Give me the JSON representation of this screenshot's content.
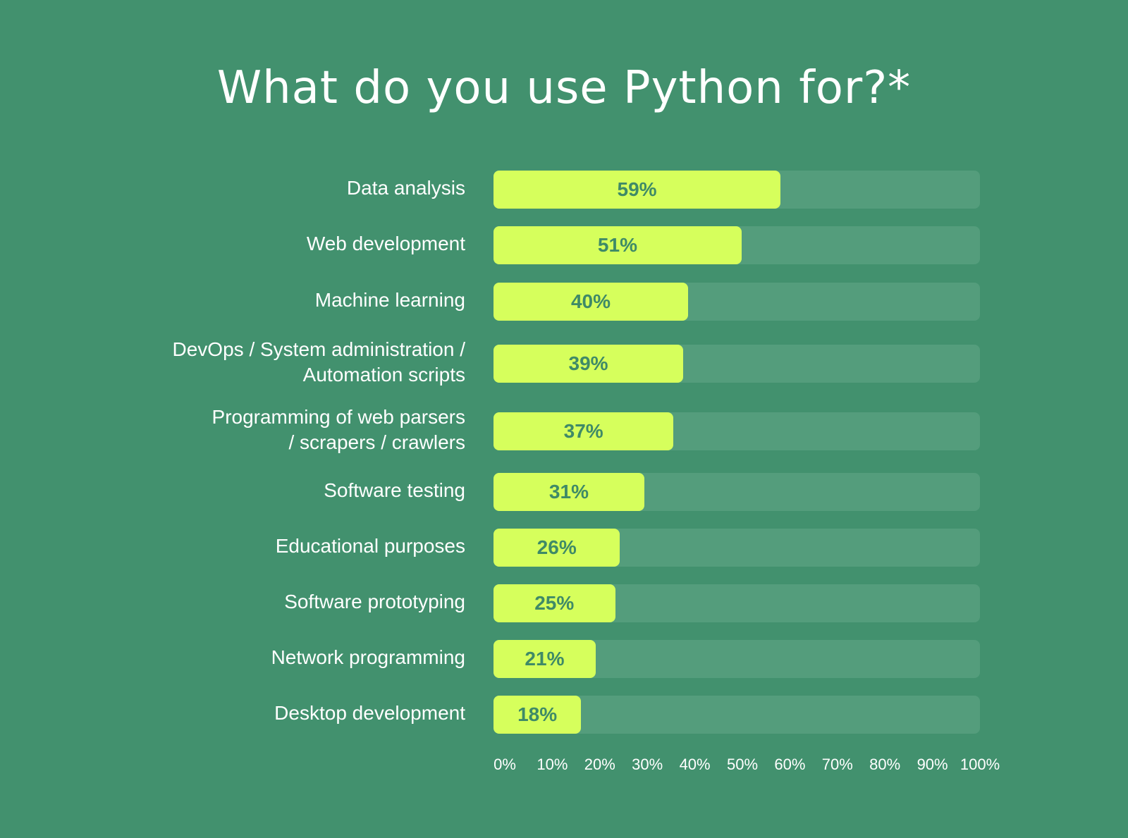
{
  "chart_data": {
    "type": "bar",
    "orientation": "horizontal",
    "title": "What do you use Python for?*",
    "categories": [
      "Data analysis",
      "Web development",
      "Machine learning",
      "DevOps / System administration /\nAutomation scripts",
      "Programming of web parsers\n/ scrapers / crawlers",
      "Software testing",
      "Educational purposes",
      "Software prototyping",
      "Network programming",
      "Desktop development"
    ],
    "values": [
      59,
      51,
      40,
      39,
      37,
      31,
      26,
      25,
      21,
      18
    ],
    "value_labels": [
      "59%",
      "51%",
      "40%",
      "39%",
      "37%",
      "31%",
      "26%",
      "25%",
      "21%",
      "18%"
    ],
    "xlim": [
      0,
      100
    ],
    "xticks": [
      "0%",
      "10%",
      "20%",
      "30%",
      "40%",
      "50%",
      "60%",
      "70%",
      "80%",
      "90%",
      "100%"
    ],
    "grid": false,
    "legend": "none"
  },
  "colors": {
    "background": "#42916e",
    "track": "#549d7c",
    "bar": "#d6ff5c",
    "bar_text": "#3f8a67",
    "text": "#ffffff"
  }
}
